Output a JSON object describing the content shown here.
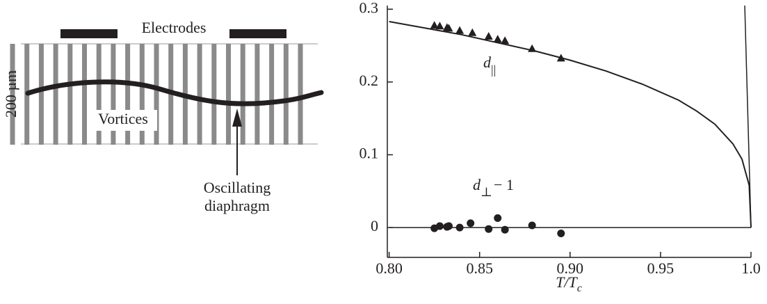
{
  "diagram": {
    "electrodes": "Electrodes",
    "scale": "200 µm",
    "vortices": "Vortices",
    "diaphragm": [
      "Oscillating",
      "diaphragm"
    ]
  },
  "chart_data": {
    "type": "scatter",
    "xlabel": {
      "text": "T/T",
      "sub": "c"
    },
    "xlim": [
      0.799,
      1.0
    ],
    "ylim": [
      -0.041,
      0.305
    ],
    "xticks": [
      {
        "value": 0.8,
        "label": "0.80"
      },
      0.85,
      {
        "value": 0.9,
        "label": "0.90"
      },
      0.95,
      {
        "value": 1.0,
        "label": "1.0"
      }
    ],
    "yticks": [
      0,
      0.1,
      0.2,
      0.3
    ],
    "hline": 0,
    "series": [
      {
        "marker": "triangle",
        "color": "#231f20",
        "label": {
          "text": "d",
          "sub": "||"
        },
        "x": [
          0.825,
          0.828,
          0.832,
          0.833,
          0.839,
          0.846,
          0.855,
          0.86,
          0.864,
          0.879,
          0.895
        ],
        "values": [
          0.278,
          0.277,
          0.275,
          0.274,
          0.271,
          0.268,
          0.263,
          0.259,
          0.257,
          0.246,
          0.233
        ]
      },
      {
        "marker": "circle",
        "color": "#231f20",
        "label": {
          "text": "d",
          "sub": "⊥",
          "after": "− 1"
        },
        "x": [
          0.825,
          0.828,
          0.832,
          0.833,
          0.839,
          0.845,
          0.855,
          0.86,
          0.864,
          0.879,
          0.895
        ],
        "values": [
          -0.001,
          0.002,
          0.001,
          0.002,
          0.0,
          0.006,
          -0.002,
          0.013,
          -0.003,
          0.003,
          -0.008
        ]
      },
      {
        "marker": "line",
        "color": "#231f20",
        "x": [
          0.8,
          0.82,
          0.84,
          0.86,
          0.88,
          0.9,
          0.92,
          0.94,
          0.96,
          0.97,
          0.98,
          0.99,
          0.995,
          0.999,
          1.0
        ],
        "values": [
          0.283,
          0.274,
          0.265,
          0.254,
          0.243,
          0.23,
          0.215,
          0.197,
          0.175,
          0.16,
          0.142,
          0.115,
          0.094,
          0.058,
          0.0
        ]
      }
    ]
  }
}
